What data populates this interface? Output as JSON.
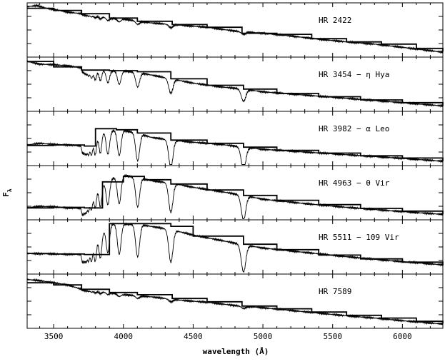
{
  "chart_data": {
    "type": "line",
    "xlabel": "wavelength (Å)",
    "ylabel": "F",
    "ylabel_subscript": "λ",
    "xlim": [
      3310,
      6290
    ],
    "x_ticks": [
      3500,
      4000,
      4500,
      5000,
      5500,
      6000
    ],
    "x_tick_labels": [
      "3500",
      "4000",
      "4500",
      "5000",
      "5500",
      "6000"
    ],
    "line_color": "#000000",
    "panels": [
      {
        "label": "HR 2422",
        "ylim": [
          0,
          1
        ],
        "series": [
          {
            "style": "observed",
            "x": [
              3310,
              3380,
              3450,
              3520,
              3600,
              3700,
              3800,
              3900,
              4000,
              4200,
              4400,
              4600,
              4800,
              5000,
              5200,
              5400,
              5600,
              5800,
              6000,
              6290
            ],
            "y": [
              0.93,
              0.95,
              0.9,
              0.87,
              0.83,
              0.8,
              0.76,
              0.72,
              0.7,
              0.63,
              0.59,
              0.55,
              0.48,
              0.44,
              0.39,
              0.33,
              0.28,
              0.24,
              0.18,
              0.09
            ]
          },
          {
            "style": "template",
            "x": [
              3310,
              3500,
              3700,
              3900,
              4100,
              4350,
              4600,
              4850,
              5100,
              5350,
              5600,
              5850,
              6100,
              6290
            ],
            "y": [
              0.9,
              0.86,
              0.8,
              0.72,
              0.66,
              0.6,
              0.55,
              0.44,
              0.42,
              0.34,
              0.28,
              0.24,
              0.16,
              0.1
            ]
          }
        ]
      },
      {
        "label": "HR 3454 − η Hya",
        "ylim": [
          0,
          1
        ],
        "series": [
          {
            "style": "observed",
            "x": [
              3310,
              3400,
              3500,
              3600,
              3700,
              3780,
              3850,
              3900,
              3970,
              4100,
              4340,
              4500,
              4700,
              4861,
              5000,
              5300,
              5600,
              5900,
              6290
            ],
            "y": [
              0.92,
              0.87,
              0.86,
              0.84,
              0.8,
              0.74,
              0.76,
              0.75,
              0.75,
              0.72,
              0.6,
              0.52,
              0.45,
              0.41,
              0.36,
              0.3,
              0.24,
              0.18,
              0.1
            ]
          },
          {
            "style": "template",
            "x": [
              3310,
              3500,
              3700,
              3900,
              4100,
              4340,
              4600,
              4861,
              5100,
              5400,
              5700,
              6000,
              6290
            ],
            "y": [
              0.92,
              0.82,
              0.76,
              0.75,
              0.73,
              0.6,
              0.48,
              0.41,
              0.33,
              0.27,
              0.21,
              0.16,
              0.1
            ]
          }
        ]
      },
      {
        "label": "HR 3982 − α Leo",
        "ylim": [
          0,
          1
        ],
        "series": [
          {
            "style": "observed",
            "x": [
              3310,
              3400,
              3500,
              3600,
              3700,
              3750,
              3850,
              3970,
              4100,
              4200,
              4340,
              4500,
              4700,
              4861,
              5000,
              5300,
              5600,
              5900,
              6290
            ],
            "y": [
              0.38,
              0.41,
              0.39,
              0.38,
              0.36,
              0.4,
              0.62,
              0.66,
              0.6,
              0.52,
              0.47,
              0.43,
              0.39,
              0.34,
              0.3,
              0.25,
              0.2,
              0.15,
              0.08
            ]
          },
          {
            "style": "template",
            "x": [
              3310,
              3500,
              3720,
              3800,
              3950,
              4100,
              4340,
              4600,
              4861,
              5100,
              5400,
              5700,
              6000,
              6290
            ],
            "y": [
              0.37,
              0.38,
              0.36,
              0.68,
              0.66,
              0.6,
              0.47,
              0.41,
              0.34,
              0.28,
              0.23,
              0.18,
              0.14,
              0.08
            ]
          }
        ]
      },
      {
        "label": "HR 4963 − θ Vir",
        "ylim": [
          0,
          1
        ],
        "series": [
          {
            "style": "observed",
            "x": [
              3310,
              3400,
              3500,
              3600,
              3700,
              3800,
              3900,
              4000,
              4100,
              4200,
              4340,
              4500,
              4700,
              4861,
              5000,
              5300,
              5600,
              5900,
              6290
            ],
            "y": [
              0.22,
              0.25,
              0.24,
              0.22,
              0.21,
              0.55,
              0.75,
              0.82,
              0.78,
              0.72,
              0.68,
              0.6,
              0.52,
              0.45,
              0.38,
              0.3,
              0.23,
              0.17,
              0.1
            ]
          },
          {
            "style": "template",
            "x": [
              3310,
              3500,
              3720,
              3850,
              4000,
              4150,
              4340,
              4600,
              4861,
              5100,
              5400,
              5700,
              6000,
              6290
            ],
            "y": [
              0.22,
              0.23,
              0.22,
              0.7,
              0.8,
              0.74,
              0.66,
              0.55,
              0.45,
              0.36,
              0.28,
              0.21,
              0.16,
              0.1
            ]
          }
        ]
      },
      {
        "label": "HR 5511 − 109 Vir",
        "ylim": [
          0,
          1
        ],
        "series": [
          {
            "style": "observed",
            "x": [
              3310,
              3500,
              3700,
              3800,
              3900,
              4000,
              4100,
              4340,
              4500,
              4700,
              4861,
              5000,
              5300,
              5600,
              5900,
              6290
            ],
            "y": [
              0.38,
              0.37,
              0.36,
              0.6,
              0.93,
              0.92,
              0.92,
              0.82,
              0.72,
              0.62,
              0.54,
              0.48,
              0.4,
              0.32,
              0.25,
              0.17
            ]
          },
          {
            "style": "template",
            "x": [
              3310,
              3500,
              3720,
              3850,
              3900,
              4100,
              4340,
              4500,
              4861,
              5100,
              5400,
              5700,
              6000,
              6290
            ],
            "y": [
              0.38,
              0.37,
              0.36,
              0.36,
              0.93,
              0.93,
              0.88,
              0.7,
              0.55,
              0.45,
              0.35,
              0.28,
              0.22,
              0.16
            ]
          }
        ]
      },
      {
        "label": "HR 7589",
        "ylim": [
          0,
          1
        ],
        "series": [
          {
            "style": "observed",
            "x": [
              3310,
              3400,
              3500,
              3600,
              3700,
              3800,
              3900,
              4000,
              4200,
              4400,
              4600,
              4800,
              5000,
              5200,
              5400,
              5600,
              5800,
              6000,
              6290
            ],
            "y": [
              0.9,
              0.88,
              0.84,
              0.8,
              0.72,
              0.68,
              0.66,
              0.62,
              0.58,
              0.52,
              0.48,
              0.42,
              0.38,
              0.33,
              0.28,
              0.23,
              0.19,
              0.14,
              0.08
            ]
          },
          {
            "style": "template",
            "x": [
              3310,
              3500,
              3700,
              3900,
              4100,
              4350,
              4600,
              4850,
              5100,
              5350,
              5600,
              5850,
              6100,
              6290
            ],
            "y": [
              0.84,
              0.8,
              0.72,
              0.66,
              0.62,
              0.55,
              0.49,
              0.41,
              0.36,
              0.3,
              0.24,
              0.19,
              0.13,
              0.09
            ]
          }
        ]
      }
    ],
    "absorption_lines": [
      {
        "x": 3704,
        "depth": 0.12,
        "width": 4
      },
      {
        "x": 3712,
        "depth": 0.14,
        "width": 4
      },
      {
        "x": 3722,
        "depth": 0.16,
        "width": 5
      },
      {
        "x": 3734,
        "depth": 0.2,
        "width": 6
      },
      {
        "x": 3750,
        "depth": 0.24,
        "width": 7
      },
      {
        "x": 3771,
        "depth": 0.3,
        "width": 8
      },
      {
        "x": 3798,
        "depth": 0.36,
        "width": 9
      },
      {
        "x": 3835,
        "depth": 0.42,
        "width": 10
      },
      {
        "x": 3889,
        "depth": 0.5,
        "width": 12
      },
      {
        "x": 3970,
        "depth": 0.56,
        "width": 13
      },
      {
        "x": 4102,
        "depth": 0.6,
        "width": 14
      },
      {
        "x": 4340,
        "depth": 0.6,
        "width": 15
      },
      {
        "x": 4861,
        "depth": 0.5,
        "width": 16
      }
    ],
    "panel_line_strength": [
      0.1,
      0.45,
      0.85,
      0.9,
      1.0,
      0.08
    ]
  }
}
